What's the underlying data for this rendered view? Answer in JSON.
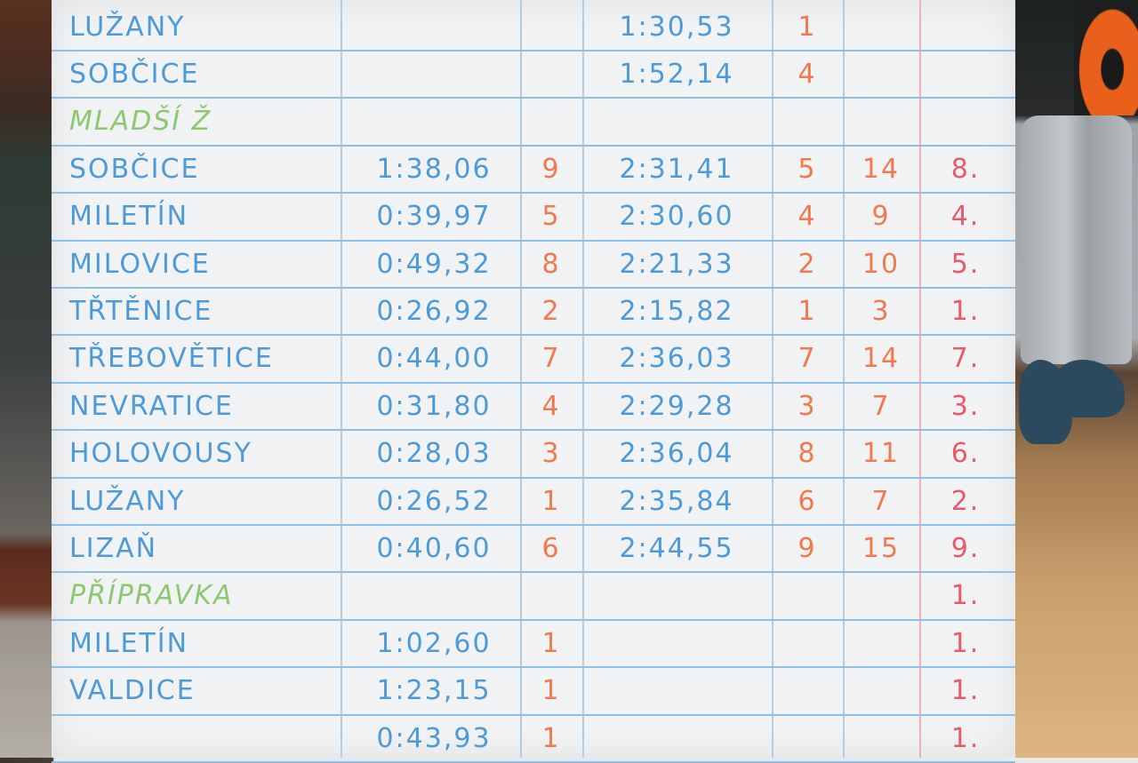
{
  "scene": "handwritten results board",
  "colors": {
    "board": "#f1f2f4",
    "grid": "#8ebfe6",
    "times": "#4d9ad8",
    "points": "#f07a4e",
    "places": "#e65a6a",
    "category_headers": "#8cc870"
  },
  "rows": [
    {
      "type": "team",
      "name": "LUŽANY",
      "time1": "",
      "points1": "",
      "time2": "1:30,53",
      "points2": "1",
      "sum": "",
      "place": ""
    },
    {
      "type": "team",
      "name": "SOBČICE",
      "time1": "",
      "points1": "",
      "time2": "1:52,14",
      "points2": "4",
      "sum": "",
      "place": ""
    },
    {
      "type": "header",
      "name": "MLADŠÍ Ž"
    },
    {
      "type": "team",
      "name": "SOBČICE",
      "time1": "1:38,06",
      "points1": "9",
      "time2": "2:31,41",
      "points2": "5",
      "sum": "14",
      "place": "8."
    },
    {
      "type": "team",
      "name": "MILETÍN",
      "time1": "0:39,97",
      "points1": "5",
      "time2": "2:30,60",
      "points2": "4",
      "sum": "9",
      "place": "4."
    },
    {
      "type": "team",
      "name": "MILOVICE",
      "time1": "0:49,32",
      "points1": "8",
      "time2": "2:21,33",
      "points2": "2",
      "sum": "10",
      "place": "5."
    },
    {
      "type": "team",
      "name": "TŘTĚNICE",
      "time1": "0:26,92",
      "points1": "2",
      "time2": "2:15,82",
      "points2": "1",
      "sum": "3",
      "place": "1."
    },
    {
      "type": "team",
      "name": "TŘEBOVĚTICE",
      "time1": "0:44,00",
      "points1": "7",
      "time2": "2:36,03",
      "points2": "7",
      "sum": "14",
      "place": "7."
    },
    {
      "type": "team",
      "name": "NEVRATICE",
      "time1": "0:31,80",
      "points1": "4",
      "time2": "2:29,28",
      "points2": "3",
      "sum": "7",
      "place": "3."
    },
    {
      "type": "team",
      "name": "HOLOVOUSY",
      "time1": "0:28,03",
      "points1": "3",
      "time2": "2:36,04",
      "points2": "8",
      "sum": "11",
      "place": "6."
    },
    {
      "type": "team",
      "name": "LUŽANY",
      "time1": "0:26,52",
      "points1": "1",
      "time2": "2:35,84",
      "points2": "6",
      "sum": "7",
      "place": "2."
    },
    {
      "type": "team",
      "name": "LIZAŇ",
      "time1": "0:40,60",
      "points1": "6",
      "time2": "2:44,55",
      "points2": "9",
      "sum": "15",
      "place": "9."
    },
    {
      "type": "header",
      "name": "PŘÍPRAVKA",
      "place": "1."
    },
    {
      "type": "team",
      "name": "MILETÍN",
      "time1": "1:02,60",
      "points1": "1",
      "time2": "",
      "points2": "",
      "sum": "",
      "place": "1."
    },
    {
      "type": "team",
      "name": "VALDICE",
      "time1": "1:23,15",
      "points1": "1",
      "time2": "",
      "points2": "",
      "sum": "",
      "place": "1."
    },
    {
      "type": "team",
      "name": "",
      "time1": "0:43,93",
      "points1": "1",
      "time2": "",
      "points2": "",
      "sum": "",
      "place": "1."
    }
  ]
}
